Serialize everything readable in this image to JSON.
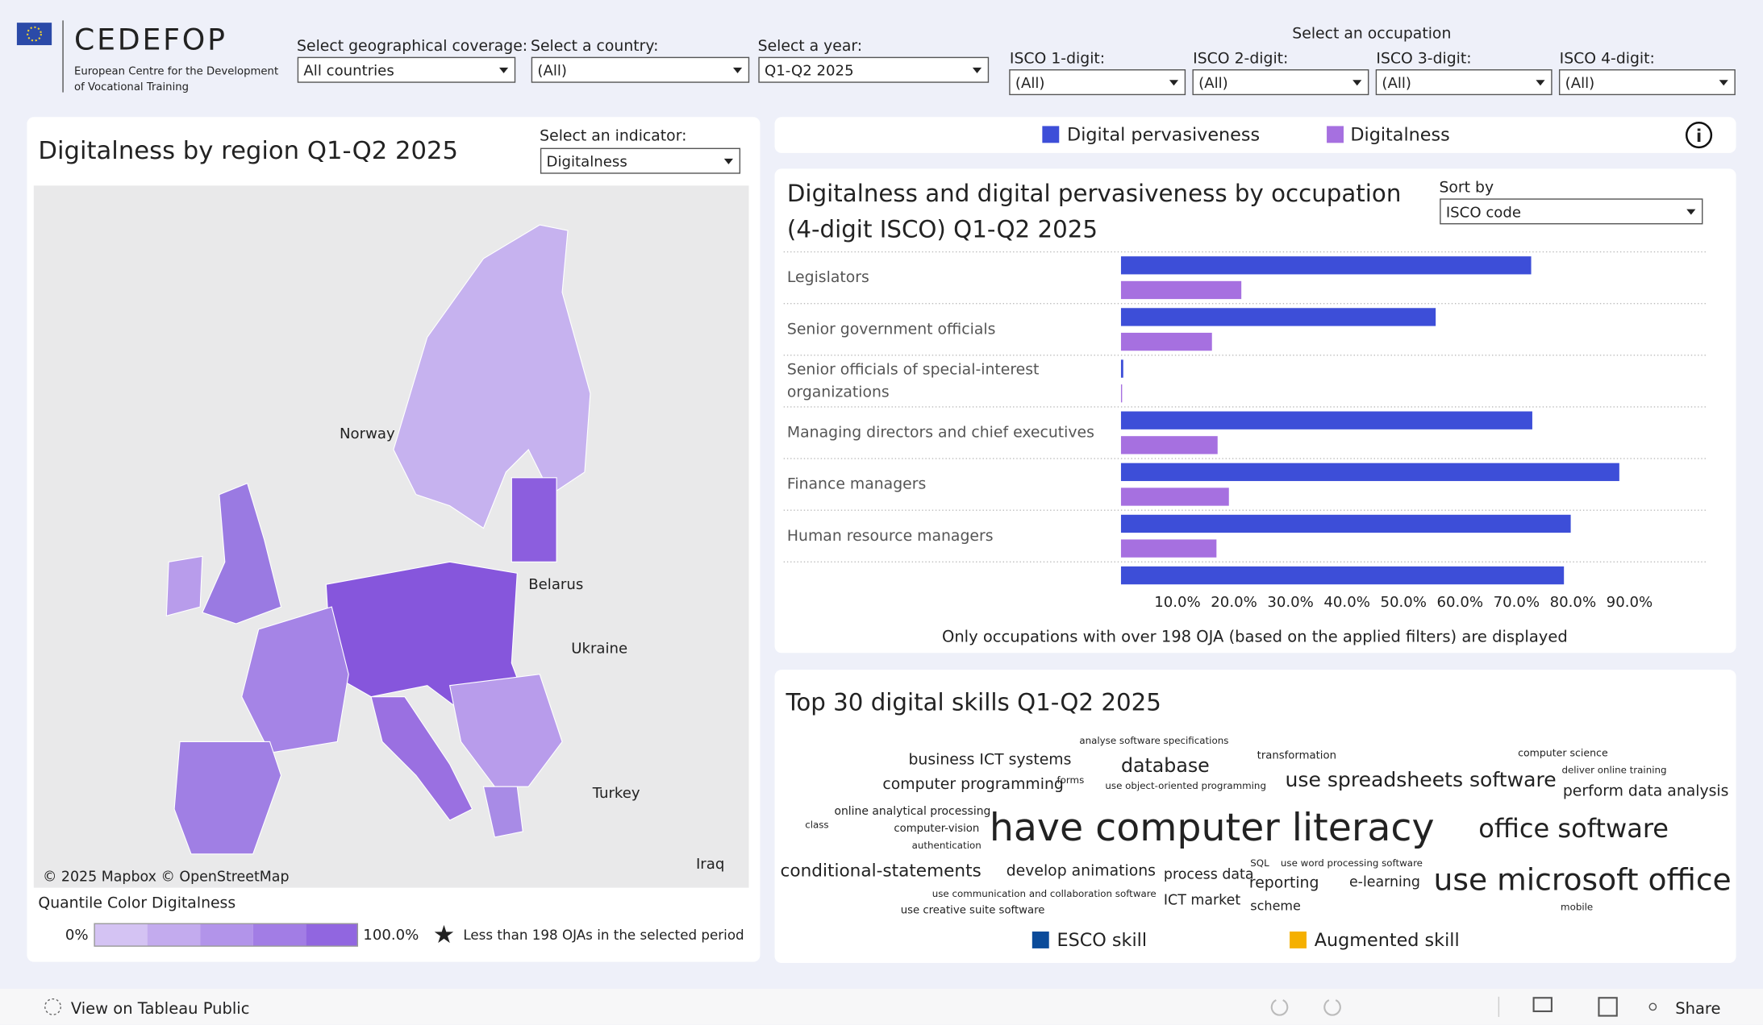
{
  "header": {
    "brand": "CEDEFOP",
    "subtitle_line1": "European Centre for the Development",
    "subtitle_line2": "of Vocational Training"
  },
  "filters": [
    {
      "label": "Select geographical coverage:",
      "value": "All countries"
    },
    {
      "label": "Select a country:",
      "value": "(All)"
    },
    {
      "label": "Select a year:",
      "value": "Q1-Q2 2025"
    }
  ],
  "occupation_filter": {
    "title": "Select an occupation",
    "levels": [
      {
        "label": "ISCO 1-digit:",
        "value": "(All)"
      },
      {
        "label": "ISCO 2-digit:",
        "value": "(All)"
      },
      {
        "label": "ISCO 3-digit:",
        "value": "(All)"
      },
      {
        "label": "ISCO 4-digit:",
        "value": "(All)"
      }
    ]
  },
  "map": {
    "title": "Digitalness by region Q1-Q2 2025",
    "indicator_label": "Select an indicator:",
    "indicator_value": "Digitalness",
    "place_labels": [
      "Norway",
      "Belarus",
      "Ukraine",
      "Turkey",
      "Iraq"
    ],
    "attribution": "© 2025 Mapbox  © OpenStreetMap",
    "legend_title": "Quantile Color Digitalness",
    "legend_min": "0%",
    "legend_max": "100.0%",
    "legend_note": "Less than 198 OJAs in the selected period"
  },
  "bar_chart": {
    "type": "bar",
    "title": "Digitalness and digital pervasiveness by occupation (4-digit ISCO) Q1-Q2 2025",
    "sort_label": "Sort by",
    "sort_value": "ISCO code",
    "categories": [
      "Legislators",
      "Senior government officials",
      "Senior officials of special-interest organizations",
      "Managing directors and chief executives",
      "Finance managers",
      "Human resource managers",
      null
    ],
    "series": [
      {
        "name": "Digital pervasiveness",
        "color": "#3d4ed8",
        "values": [
          72.6,
          55.7,
          0.4,
          72.8,
          88.2,
          79.6,
          78.4
        ]
      },
      {
        "name": "Digitalness",
        "color": "#a670e0",
        "values": [
          21.3,
          16.1,
          0.2,
          17.1,
          19.1,
          16.9,
          null
        ]
      }
    ],
    "xlim": [
      0,
      100
    ],
    "xticks": [
      {
        "value": 10,
        "label": "10.0%"
      },
      {
        "value": 20,
        "label": "20.0%"
      },
      {
        "value": 30,
        "label": "30.0%"
      },
      {
        "value": 40,
        "label": "40.0%"
      },
      {
        "value": 50,
        "label": "50.0%"
      },
      {
        "value": 60,
        "label": "60.0%"
      },
      {
        "value": 70,
        "label": "70.0%"
      },
      {
        "value": 80,
        "label": "80.0%"
      },
      {
        "value": 90,
        "label": "90.0%"
      }
    ],
    "note": "Only occupations with over 198 OJA (based on the applied filters) are displayed"
  },
  "skills": {
    "title": "Top 30 digital skills Q1-Q2 2025",
    "legend": [
      "ESCO skill",
      "Augmented skill"
    ],
    "esco_skills": [
      "have computer literacy",
      "use microsoft office",
      "office software",
      "use spreadsheets software",
      "database",
      "business ICT systems",
      "computer programming",
      "perform data analysis",
      "develop animations",
      "process data",
      "e-learning",
      "ICT market",
      "online analytical processing",
      "analyse software specifications",
      "computer science",
      "deliver online training",
      "use object-oriented programming",
      "SQL",
      "use word processing software",
      "use communication and collaboration software",
      "use creative suite software"
    ],
    "augmented_skills": [
      "conditional-statements",
      "transformation",
      "forms",
      "class",
      "computer-vision",
      "authentication",
      "reporting",
      "scheme",
      "mobile"
    ]
  },
  "footer": {
    "left": "View on Tableau Public",
    "share": "Share"
  }
}
